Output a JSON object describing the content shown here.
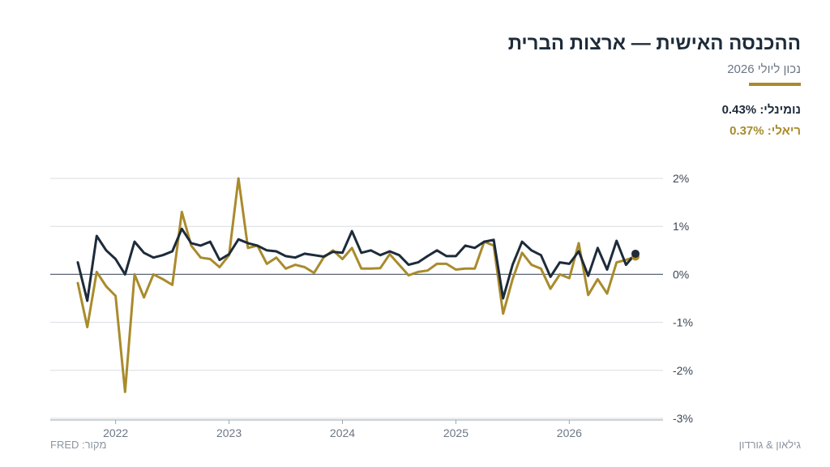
{
  "header": {
    "title": "ההכנסה האישית — ארצות הברית",
    "subtitle": "נכון ליולי 2026"
  },
  "legend": {
    "nominal_label": "נומינלי:",
    "nominal_value": "0.43%",
    "real_label": "ריאלי:",
    "real_value": "0.37%"
  },
  "footer": {
    "source": "מקור: FRED",
    "brand": "גילאון & גורדון"
  },
  "colors": {
    "nominal": "#1d2b3a",
    "real": "#a98b2c",
    "grid": "#d9dde2",
    "zero_line": "#5a6675"
  },
  "chart_data": {
    "type": "line",
    "ylabel_unit": "%",
    "ylim": [
      -3,
      2
    ],
    "yticks": [
      2,
      1,
      0,
      -1,
      -2,
      -3
    ],
    "ytick_labels": [
      "2%",
      "1%",
      "0%",
      "-1%",
      "-2%",
      "-3%"
    ],
    "xticks": [
      "2022",
      "2023",
      "2024",
      "2025",
      "2026"
    ],
    "x_start": "2021-09",
    "x_end": "2026-07",
    "grid": true,
    "series": [
      {
        "name": "נומינלי",
        "values": [
          0.25,
          -0.55,
          0.8,
          0.5,
          0.32,
          0.0,
          0.68,
          0.45,
          0.35,
          0.4,
          0.48,
          0.95,
          0.65,
          0.6,
          0.68,
          0.3,
          0.42,
          0.73,
          0.65,
          0.6,
          0.5,
          0.48,
          0.38,
          0.35,
          0.43,
          0.4,
          0.37,
          0.47,
          0.45,
          0.9,
          0.45,
          0.5,
          0.4,
          0.48,
          0.4,
          0.2,
          0.25,
          0.38,
          0.5,
          0.38,
          0.38,
          0.6,
          0.55,
          0.68,
          0.72,
          -0.5,
          0.2,
          0.68,
          0.5,
          0.4,
          -0.05,
          0.25,
          0.22,
          0.48,
          -0.03,
          0.55,
          0.1,
          0.7,
          0.2,
          0.43
        ]
      },
      {
        "name": "ריאלי",
        "values": [
          -0.18,
          -1.1,
          0.05,
          -0.25,
          -0.45,
          -2.45,
          0.0,
          -0.48,
          0.0,
          -0.1,
          -0.22,
          1.3,
          0.6,
          0.35,
          0.32,
          0.15,
          0.4,
          2.0,
          0.55,
          0.6,
          0.22,
          0.35,
          0.12,
          0.2,
          0.15,
          0.03,
          0.35,
          0.5,
          0.32,
          0.55,
          0.12,
          0.12,
          0.13,
          0.42,
          0.2,
          -0.02,
          0.05,
          0.08,
          0.22,
          0.22,
          0.1,
          0.12,
          0.12,
          0.68,
          0.6,
          -0.82,
          -0.1,
          0.45,
          0.2,
          0.12,
          -0.3,
          0.0,
          -0.08,
          0.65,
          -0.43,
          -0.1,
          -0.4,
          0.25,
          0.3,
          0.37
        ]
      }
    ]
  }
}
